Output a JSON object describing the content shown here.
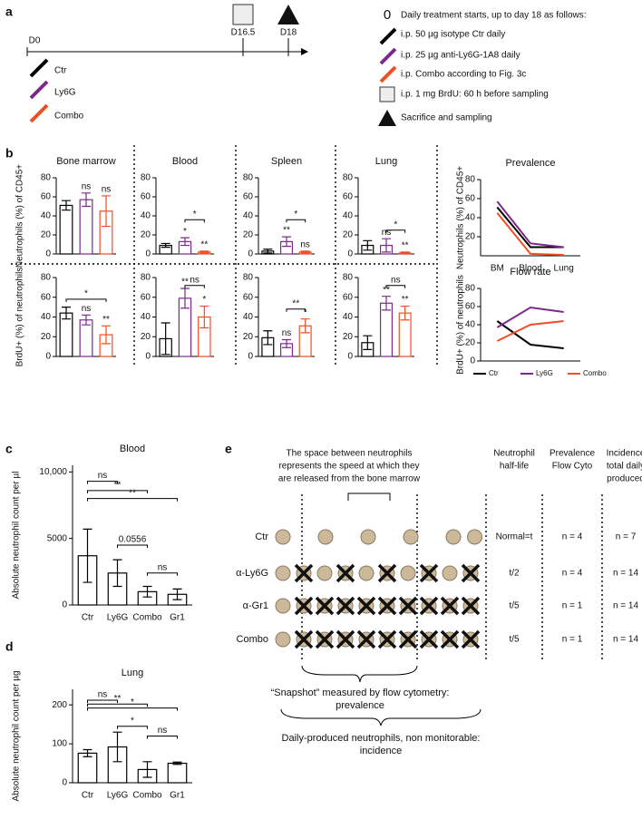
{
  "panel_labels": [
    "a",
    "b",
    "c",
    "d",
    "e"
  ],
  "timeline": {
    "start": "D0",
    "marks": [
      "D16.5",
      "D18"
    ],
    "legend": [
      "Ctr",
      "Ly6G",
      "Combo"
    ],
    "protocol": {
      "start_symbol": "0",
      "lines": [
        "Daily treatment starts, up to day 18 as follows:",
        "i.p. 50 µg isotype Ctr daily",
        "i.p. 25 µg anti-Ly6G-1A8 daily",
        "i.p. Combo according to Fig. 3c",
        "i.p. 1 mg BrdU: 60 h before sampling",
        "Sacrifice and sampling"
      ]
    }
  },
  "chart_data": [
    {
      "type": "bar",
      "title": "Bone marrow",
      "y_label": "Neutrophils (%) of CD45+",
      "categories": [
        null,
        null,
        null
      ],
      "values": [
        51,
        57,
        45
      ],
      "errors": [
        5,
        7,
        16
      ],
      "colors": [
        "#000000",
        "#7b2a8c",
        "#f04e23"
      ],
      "sig_labels": [
        null,
        "ns",
        "ns"
      ],
      "brackets": [],
      "ylim": [
        0,
        80
      ],
      "yticks": [
        0,
        20,
        40,
        60,
        80
      ]
    },
    {
      "type": "bar",
      "title": "Blood",
      "categories": [
        null,
        null,
        null
      ],
      "values": [
        9,
        13,
        2
      ],
      "errors": [
        2,
        4,
        1
      ],
      "colors": [
        "#000000",
        "#7b2a8c",
        "#f04e23"
      ],
      "sig_labels": [
        null,
        "*",
        "**"
      ],
      "brackets": [
        {
          "between": [
            1,
            2
          ],
          "label": "*",
          "y": 36
        }
      ],
      "ylim": [
        0,
        80
      ],
      "yticks": [
        0,
        20,
        40,
        60,
        80
      ]
    },
    {
      "type": "bar",
      "title": "Spleen",
      "categories": [
        null,
        null,
        null
      ],
      "values": [
        3,
        13,
        2
      ],
      "errors": [
        2,
        5,
        1
      ],
      "colors": [
        "#000000",
        "#7b2a8c",
        "#f04e23"
      ],
      "sig_labels": [
        null,
        "**",
        "ns"
      ],
      "brackets": [
        {
          "between": [
            1,
            2
          ],
          "label": "*",
          "y": 36
        }
      ],
      "ylim": [
        0,
        80
      ],
      "yticks": [
        0,
        20,
        40,
        60,
        80
      ]
    },
    {
      "type": "bar",
      "title": "Lung",
      "categories": [
        null,
        null,
        null
      ],
      "values": [
        9,
        9,
        1
      ],
      "errors": [
        5,
        7,
        1
      ],
      "colors": [
        "#000000",
        "#7b2a8c",
        "#f04e23"
      ],
      "sig_labels": [
        null,
        "ns",
        "**"
      ],
      "brackets": [
        {
          "between": [
            1,
            2
          ],
          "label": "*",
          "y": 25
        }
      ],
      "ylim": [
        0,
        80
      ],
      "yticks": [
        0,
        20,
        40,
        60,
        80
      ]
    },
    {
      "type": "bar",
      "y_label": "BrdU+ (%) of neutrophils",
      "categories": [
        null,
        null,
        null
      ],
      "values": [
        44,
        37,
        22
      ],
      "errors": [
        6,
        5,
        9
      ],
      "colors": [
        "#000000",
        "#7b2a8c",
        "#f04e23"
      ],
      "sig_labels": [
        null,
        "ns",
        "**"
      ],
      "brackets": [
        {
          "between": [
            0,
            2
          ],
          "label": "*",
          "y": 58
        }
      ],
      "ylim": [
        0,
        80
      ],
      "yticks": [
        0,
        20,
        40,
        60,
        80
      ]
    },
    {
      "type": "bar",
      "categories": [
        null,
        null,
        null
      ],
      "values": [
        18,
        59,
        40
      ],
      "errors": [
        16,
        10,
        11
      ],
      "colors": [
        "#000000",
        "#7b2a8c",
        "#f04e23"
      ],
      "sig_labels": [
        null,
        "**",
        "*"
      ],
      "brackets": [
        {
          "between": [
            1,
            2
          ],
          "label": "ns",
          "y": 72
        }
      ],
      "ylim": [
        0,
        80
      ],
      "yticks": [
        0,
        20,
        40,
        60,
        80
      ]
    },
    {
      "type": "bar",
      "categories": [
        null,
        null,
        null
      ],
      "values": [
        19,
        13,
        31
      ],
      "errors": [
        7,
        4,
        7
      ],
      "colors": [
        "#000000",
        "#7b2a8c",
        "#f04e23"
      ],
      "sig_labels": [
        null,
        "ns",
        "*"
      ],
      "brackets": [
        {
          "between": [
            1,
            2
          ],
          "label": "**",
          "y": 48
        }
      ],
      "ylim": [
        0,
        80
      ],
      "yticks": [
        0,
        20,
        40,
        60,
        80
      ]
    },
    {
      "type": "bar",
      "categories": [
        null,
        null,
        null
      ],
      "values": [
        14,
        54,
        44
      ],
      "errors": [
        7,
        7,
        7
      ],
      "colors": [
        "#000000",
        "#7b2a8c",
        "#f04e23"
      ],
      "sig_labels": [
        null,
        "**",
        "**"
      ],
      "brackets": [
        {
          "between": [
            1,
            2
          ],
          "label": "ns",
          "y": 72
        }
      ],
      "ylim": [
        0,
        80
      ],
      "yticks": [
        0,
        20,
        40,
        60,
        80
      ]
    },
    {
      "type": "line",
      "title": "Prevalence",
      "y_label": "Neutrophils (%) of CD45+",
      "categories": [
        "BM",
        "Blood",
        "Lung"
      ],
      "series": [
        {
          "color": "#000000",
          "values": [
            51,
            9,
            9
          ]
        },
        {
          "color": "#7b2a8c",
          "values": [
            57,
            13,
            9
          ]
        },
        {
          "color": "#f04e23",
          "values": [
            45,
            2,
            1
          ]
        }
      ],
      "ylim": [
        0,
        80
      ],
      "yticks": [
        20,
        40,
        60,
        80
      ]
    },
    {
      "type": "line",
      "title": "Flow rate",
      "y_label": "BrdU+ (%) of neutrophils",
      "categories": [
        null,
        null,
        null
      ],
      "series": [
        {
          "name": "Ctr",
          "color": "#000000",
          "values": [
            44,
            18,
            14
          ]
        },
        {
          "name": "Ly6G",
          "color": "#7b2a8c",
          "values": [
            37,
            59,
            54
          ]
        },
        {
          "name": "Combo",
          "color": "#f04e23",
          "values": [
            22,
            40,
            44
          ]
        }
      ],
      "ylim": [
        0,
        80
      ],
      "yticks": [
        0,
        20,
        40,
        60,
        80
      ],
      "legend": "bottom"
    },
    {
      "type": "bar",
      "title": "Blood",
      "y_label": "Absolute neutrophil count per µl",
      "categories": [
        "Ctr",
        "Ly6G",
        "Combo",
        "Gr1"
      ],
      "values": [
        3700,
        2400,
        1000,
        800
      ],
      "errors": [
        2000,
        1000,
        400,
        400
      ],
      "colors": [
        "#000000",
        "#000000",
        "#000000",
        "#000000"
      ],
      "brackets": [
        {
          "between": [
            0,
            1
          ],
          "label": "ns",
          "y": 9300
        },
        {
          "between": [
            0,
            2
          ],
          "label": "**",
          "y": 8600
        },
        {
          "between": [
            0,
            3
          ],
          "label": "**",
          "y": 8000
        },
        {
          "between": [
            1,
            2
          ],
          "label": "0.0556",
          "y": 4500
        },
        {
          "between": [
            2,
            3
          ],
          "label": "ns",
          "y": 2400
        }
      ],
      "ylim": [
        0,
        10500
      ],
      "yticks": [
        0,
        5000,
        {
          "value": 10000,
          "label": "10,000"
        }
      ]
    },
    {
      "type": "bar",
      "title": "Lung",
      "y_label": "Absolute neutrophil count per µg",
      "categories": [
        "Ctr",
        "Ly6G",
        "Combo",
        "Gr1"
      ],
      "values": [
        76,
        92,
        34,
        50
      ],
      "errors": [
        9,
        38,
        20,
        3
      ],
      "colors": [
        "#000000",
        "#000000",
        "#000000",
        "#000000"
      ],
      "brackets": [
        {
          "between": [
            0,
            1
          ],
          "label": "ns",
          "y": 212
        },
        {
          "between": [
            0,
            2
          ],
          "label": "**",
          "y": 202
        },
        {
          "between": [
            0,
            3
          ],
          "label": "*",
          "y": 192
        },
        {
          "between": [
            1,
            2
          ],
          "label": "*",
          "y": 145
        },
        {
          "between": [
            2,
            3
          ],
          "label": "ns",
          "y": 120
        }
      ],
      "ylim": [
        0,
        240
      ],
      "yticks": [
        0,
        100,
        200
      ]
    }
  ],
  "diagram": {
    "title_lines": [
      "The space between neutrophils",
      "represents the speed at which they",
      "are released from the bone marrow"
    ],
    "columns": [
      [
        "Neutrophil",
        "half-life"
      ],
      [
        "Prevalence",
        "Flow Cyto"
      ],
      [
        "Incidence",
        "total daily",
        "produced"
      ]
    ],
    "rows": [
      {
        "label": "Ctr",
        "half_life": "Normal=t",
        "prevalence": "n = 4",
        "incidence": "n = 7"
      },
      {
        "label": "α-Ly6G",
        "half_life": "t/2",
        "prevalence": "n = 4",
        "incidence": "n = 14"
      },
      {
        "label": "α-Gr1",
        "half_life": "t/5",
        "prevalence": "n = 1",
        "incidence": "n = 14"
      },
      {
        "label": "Combo",
        "half_life": "t/5",
        "prevalence": "n = 1",
        "incidence": "n = 14"
      }
    ],
    "snapshot_lines": [
      "“Snapshot” measured by flow cytometry:",
      "prevalence"
    ],
    "daily_lines": [
      "Daily-produced neutrophils, non monitorable:",
      "incidence"
    ]
  }
}
